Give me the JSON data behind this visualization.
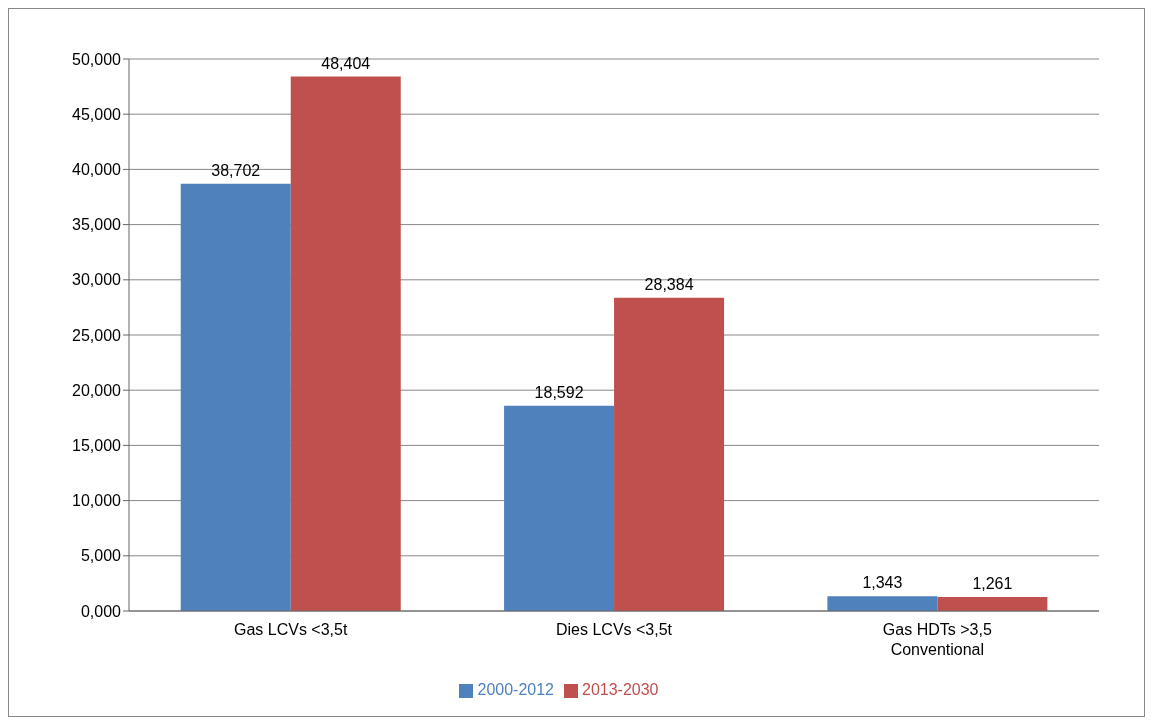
{
  "chart_data": {
    "type": "bar",
    "categories": [
      "Gas LCVs <3,5t",
      "Dies LCVs <3,5t",
      "Gas HDTs >3,5 Conventional"
    ],
    "series": [
      {
        "name": "2000-2012",
        "color": "#4f81bd",
        "values": [
          38.702,
          18.592,
          1.343
        ],
        "value_labels": [
          "38,702",
          "18,592",
          "1,343"
        ]
      },
      {
        "name": "2013-2030",
        "color": "#c0504d",
        "values": [
          48.404,
          28.384,
          1.261
        ],
        "value_labels": [
          "48,404",
          "28,384",
          "1,261"
        ]
      }
    ],
    "ylim": [
      0,
      50
    ],
    "yticks": [
      {
        "value": 0,
        "label": "0,000"
      },
      {
        "value": 5,
        "label": "5,000"
      },
      {
        "value": 10,
        "label": "10,000"
      },
      {
        "value": 15,
        "label": "15,000"
      },
      {
        "value": 20,
        "label": "20,000"
      },
      {
        "value": 25,
        "label": "25,000"
      },
      {
        "value": 30,
        "label": "30,000"
      },
      {
        "value": 35,
        "label": "35,000"
      },
      {
        "value": 40,
        "label": "40,000"
      },
      {
        "value": 45,
        "label": "45,000"
      },
      {
        "value": 50,
        "label": "50,000"
      }
    ],
    "grid": "y",
    "legend": "bottom"
  }
}
